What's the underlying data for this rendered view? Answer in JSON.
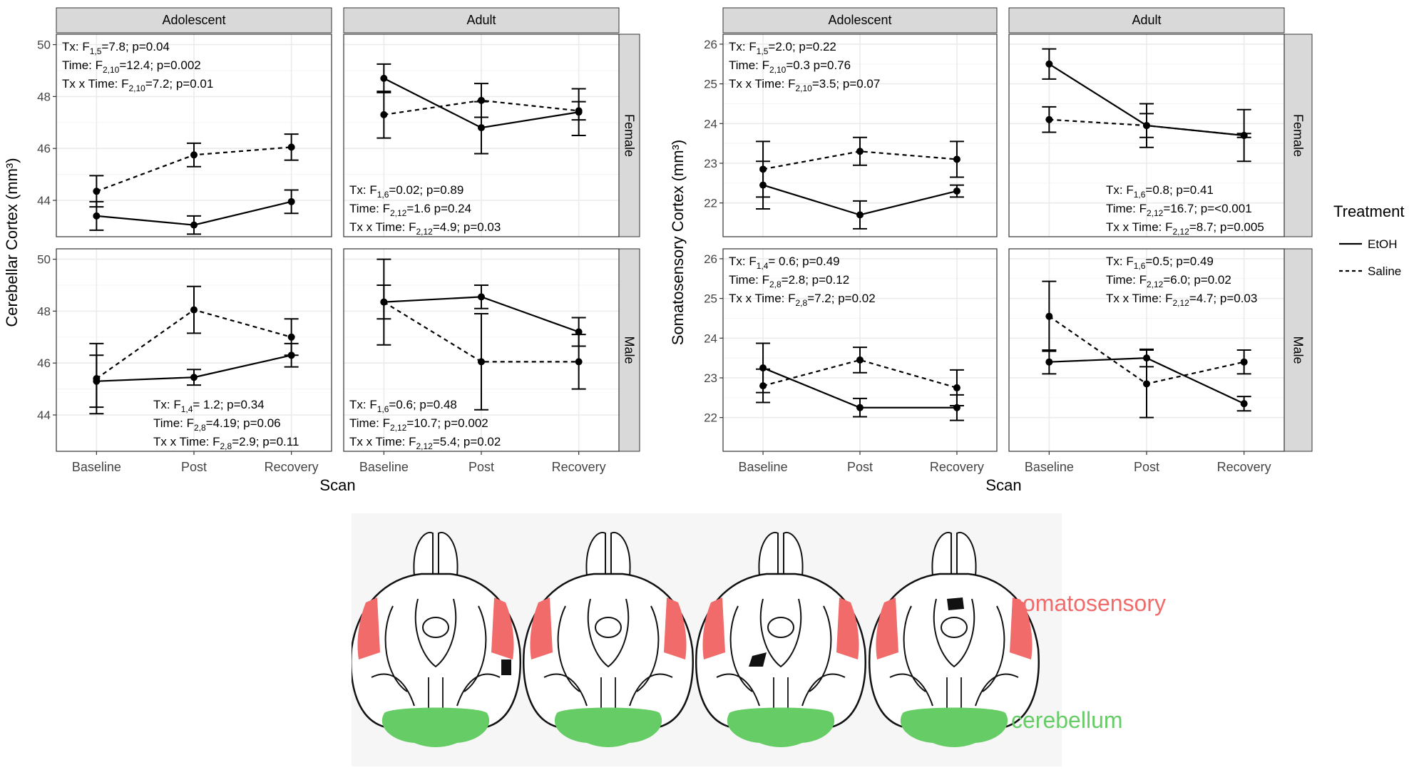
{
  "chart_data": [
    {
      "type": "line",
      "ylabel": "Cerebellar Cortex (mm³)",
      "xlabel": "Scan",
      "categories": [
        "Baseline",
        "Post",
        "Recovery"
      ],
      "col_strips": [
        "Adolescent",
        "Adult"
      ],
      "row_strips": [
        "Female",
        "Male"
      ],
      "ylim": [
        42.6,
        50.4
      ],
      "yticks": [
        44,
        46,
        48,
        50
      ],
      "panels": [
        {
          "col": "Adolescent",
          "row": "Female",
          "series": [
            {
              "name": "EtOH",
              "values": [
                43.4,
                43.05,
                43.95
              ],
              "err": [
                0.55,
                0.35,
                0.45
              ]
            },
            {
              "name": "Saline",
              "values": [
                44.35,
                45.75,
                46.05
              ],
              "err": [
                0.6,
                0.45,
                0.5
              ]
            }
          ],
          "stats": [
            "Tx: F1,5=7.8; p=0.04",
            "Time: F2,10=12.4; p=0.002",
            "Tx x Time: F2,10=7.2; p=0.01"
          ],
          "stats_pos": "top-left"
        },
        {
          "col": "Adult",
          "row": "Female",
          "series": [
            {
              "name": "EtOH",
              "values": [
                48.7,
                46.8,
                47.4
              ],
              "err": [
                0.55,
                1.0,
                0.9
              ]
            },
            {
              "name": "Saline",
              "values": [
                47.3,
                47.85,
                47.45
              ],
              "err": [
                0.9,
                0.65,
                0.35
              ]
            }
          ],
          "stats": [
            "Tx: F1,6=0.02; p=0.89",
            "Time: F2,12=1.6 p=0.24",
            "Tx x Time: F2,12=4.9; p=0.03"
          ],
          "stats_pos": "bottom-left"
        },
        {
          "col": "Adolescent",
          "row": "Male",
          "series": [
            {
              "name": "EtOH",
              "values": [
                45.3,
                45.45,
                46.3
              ],
              "err": [
                1.0,
                0.3,
                0.45
              ]
            },
            {
              "name": "Saline",
              "values": [
                45.4,
                48.05,
                47.0
              ],
              "err": [
                1.35,
                0.9,
                0.7
              ]
            }
          ],
          "stats": [
            "Tx: F1,4= 1.2; p=0.34",
            "Time: F2,8=4.19; p=0.06",
            "Tx x Time: F2,8=2.9; p=0.11"
          ],
          "stats_pos": "bottom-right"
        },
        {
          "col": "Adult",
          "row": "Male",
          "series": [
            {
              "name": "EtOH",
              "values": [
                48.35,
                48.55,
                47.2
              ],
              "err": [
                1.65,
                0.45,
                0.55
              ]
            },
            {
              "name": "Saline",
              "values": [
                48.35,
                46.05,
                46.05
              ],
              "err": [
                0.65,
                1.85,
                1.05
              ]
            }
          ],
          "stats": [
            "Tx: F1,6=0.6; p=0.48",
            "Time: F2,12=10.7; p=0.002",
            "Tx x Time: F2,12=5.4; p=0.02"
          ],
          "stats_pos": "bottom-left"
        }
      ]
    },
    {
      "type": "line",
      "ylabel": "Somatosensory Cortex (mm³)",
      "xlabel": "Scan",
      "categories": [
        "Baseline",
        "Post",
        "Recovery"
      ],
      "col_strips": [
        "Adolescent",
        "Adult"
      ],
      "row_strips": [
        "Female",
        "Male"
      ],
      "ylim": [
        21.15,
        26.25
      ],
      "yticks": [
        22,
        23,
        24,
        25,
        26
      ],
      "panels": [
        {
          "col": "Adolescent",
          "row": "Female",
          "series": [
            {
              "name": "EtOH",
              "values": [
                22.45,
                21.7,
                22.3
              ],
              "err": [
                0.6,
                0.35,
                0.15
              ]
            },
            {
              "name": "Saline",
              "values": [
                22.85,
                23.3,
                23.1
              ],
              "err": [
                0.7,
                0.35,
                0.45
              ]
            }
          ],
          "stats": [
            "Tx: F1,5=2.0; p=0.22",
            "Time: F2,10=0.3 p=0.76",
            "Tx x Time: F2,10=3.5; p=0.07"
          ],
          "stats_pos": "top-left"
        },
        {
          "col": "Adult",
          "row": "Female",
          "series": [
            {
              "name": "EtOH",
              "values": [
                25.5,
                23.95,
                23.7
              ],
              "err": [
                0.38,
                0.3,
                0.65
              ]
            },
            {
              "name": "Saline",
              "values": [
                24.1,
                23.95,
                23.7
              ],
              "err": [
                0.32,
                0.55,
                0.05
              ]
            }
          ],
          "stats": [
            "Tx: F1,6=0.8; p=0.41",
            "Time: F2,12=16.7; p=<0.001",
            "Tx x Time: F2,12=8.7; p=0.005"
          ],
          "stats_pos": "bottom-right"
        },
        {
          "col": "Adolescent",
          "row": "Male",
          "series": [
            {
              "name": "EtOH",
              "values": [
                23.25,
                22.25,
                22.25
              ],
              "err": [
                0.62,
                0.23,
                0.32
              ]
            },
            {
              "name": "Saline",
              "values": [
                22.8,
                23.45,
                22.75
              ],
              "err": [
                0.42,
                0.32,
                0.45
              ]
            }
          ],
          "stats": [
            "Tx: F1,4= 0.6; p=0.49",
            "Time: F2,8=2.8; p=0.12",
            "Tx x Time: F2,8=7.2; p=0.02"
          ],
          "stats_pos": "top-left"
        },
        {
          "col": "Adult",
          "row": "Male",
          "series": [
            {
              "name": "EtOH",
              "values": [
                23.4,
                23.5,
                22.35
              ],
              "err": [
                0.3,
                0.22,
                0.18
              ]
            },
            {
              "name": "Saline",
              "values": [
                24.55,
                22.85,
                23.4
              ],
              "err": [
                0.88,
                0.85,
                0.3
              ]
            }
          ],
          "stats": [
            "Tx: F1,6=0.5; p=0.49",
            "Time: F2,12=6.0; p=0.02",
            "Tx x Time: F2,12=4.7; p=0.03"
          ],
          "stats_pos": "top-right"
        }
      ]
    }
  ],
  "legend": {
    "title": "Treatment",
    "items": [
      {
        "label": "EtOH",
        "linetype": "solid"
      },
      {
        "label": "Saline",
        "linetype": "dashed"
      }
    ]
  },
  "brain_figure": {
    "labels": {
      "somatosensory": "somatosensory",
      "cerebellum": "cerebellum"
    },
    "colors": {
      "somatosensory": "#f26b6b",
      "cerebellum": "#66cc66",
      "outline": "#111111"
    }
  }
}
